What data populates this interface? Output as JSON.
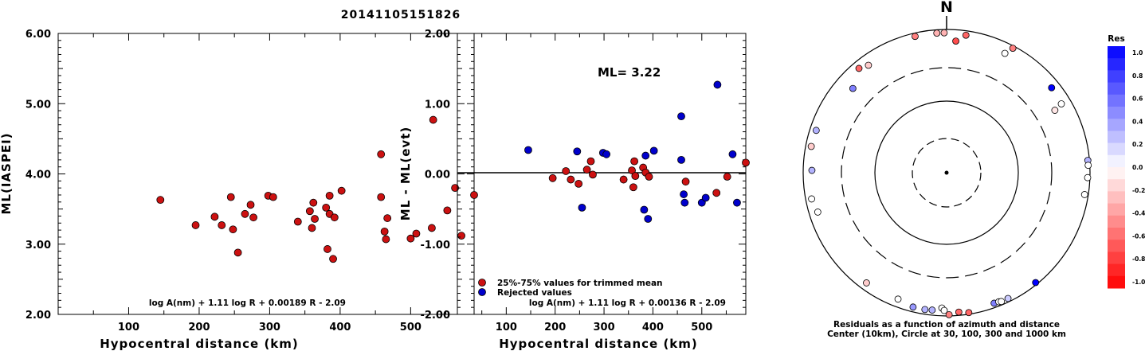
{
  "title": "20141105151826",
  "colors": {
    "red": "#cc1111",
    "blue": "#0000cc"
  },
  "chart_data": [
    {
      "type": "scatter",
      "ylabel": "ML(IASPEI)",
      "xlabel": "Hypocentral distance (km)",
      "xlim": [
        0,
        590
      ],
      "ylim": [
        2.0,
        6.0
      ],
      "xticks": [
        100,
        200,
        300,
        400,
        500
      ],
      "yticks": [
        "2.00",
        "3.00",
        "4.00",
        "5.00",
        "6.00"
      ],
      "formula": "log A(nm) + 1.11 log R + 0.00189 R - 2.09",
      "points": [
        {
          "x": 145,
          "y": 3.63
        },
        {
          "x": 195,
          "y": 3.27
        },
        {
          "x": 222,
          "y": 3.39
        },
        {
          "x": 232,
          "y": 3.27
        },
        {
          "x": 245,
          "y": 3.67
        },
        {
          "x": 248,
          "y": 3.21
        },
        {
          "x": 255,
          "y": 2.88
        },
        {
          "x": 265,
          "y": 3.43
        },
        {
          "x": 273,
          "y": 3.56
        },
        {
          "x": 277,
          "y": 3.38
        },
        {
          "x": 298,
          "y": 3.69
        },
        {
          "x": 305,
          "y": 3.67
        },
        {
          "x": 340,
          "y": 3.32
        },
        {
          "x": 357,
          "y": 3.47
        },
        {
          "x": 360,
          "y": 3.23
        },
        {
          "x": 362,
          "y": 3.59
        },
        {
          "x": 364,
          "y": 3.36
        },
        {
          "x": 380,
          "y": 3.52
        },
        {
          "x": 382,
          "y": 2.93
        },
        {
          "x": 385,
          "y": 3.43
        },
        {
          "x": 385,
          "y": 3.69
        },
        {
          "x": 390,
          "y": 2.79
        },
        {
          "x": 392,
          "y": 3.38
        },
        {
          "x": 402,
          "y": 3.76
        },
        {
          "x": 458,
          "y": 4.28
        },
        {
          "x": 458,
          "y": 3.67
        },
        {
          "x": 463,
          "y": 3.18
        },
        {
          "x": 465,
          "y": 3.07
        },
        {
          "x": 467,
          "y": 3.37
        },
        {
          "x": 500,
          "y": 3.08
        },
        {
          "x": 508,
          "y": 3.15
        },
        {
          "x": 530,
          "y": 3.23
        },
        {
          "x": 532,
          "y": 4.77
        },
        {
          "x": 552,
          "y": 3.48
        },
        {
          "x": 563,
          "y": 3.8
        },
        {
          "x": 572,
          "y": 3.12
        },
        {
          "x": 590,
          "y": 3.7
        }
      ]
    },
    {
      "type": "scatter",
      "ylabel": "ML - ML(evt)",
      "xlabel": "Hypocentral distance (km)",
      "xlim": [
        0,
        590
      ],
      "ylim": [
        -2.0,
        2.0
      ],
      "xticks": [
        100,
        200,
        300,
        400,
        500
      ],
      "yticks": [
        "-2.00",
        "-1.00",
        "0.00",
        "1.00",
        "2.00"
      ],
      "annotation": "ML= 3.22",
      "formula": "log A(nm) + 1.11 log R + 0.00136 R - 2.09",
      "legend": [
        {
          "label": "25%-75% values for trimmed mean",
          "color": "#cc1111"
        },
        {
          "label": "Rejected values",
          "color": "#0000cc"
        }
      ],
      "series": [
        {
          "name": "25%-75% values for trimmed mean",
          "points": [
            {
              "x": 195,
              "y": -0.06
            },
            {
              "x": 222,
              "y": 0.04
            },
            {
              "x": 232,
              "y": -0.08
            },
            {
              "x": 248,
              "y": -0.14
            },
            {
              "x": 265,
              "y": 0.06
            },
            {
              "x": 273,
              "y": 0.18
            },
            {
              "x": 277,
              "y": -0.01
            },
            {
              "x": 340,
              "y": -0.08
            },
            {
              "x": 357,
              "y": 0.05
            },
            {
              "x": 360,
              "y": -0.19
            },
            {
              "x": 362,
              "y": 0.18
            },
            {
              "x": 364,
              "y": -0.03
            },
            {
              "x": 380,
              "y": 0.09
            },
            {
              "x": 385,
              "y": 0.02
            },
            {
              "x": 392,
              "y": -0.04
            },
            {
              "x": 467,
              "y": -0.11
            },
            {
              "x": 530,
              "y": -0.27
            },
            {
              "x": 552,
              "y": -0.04
            },
            {
              "x": 590,
              "y": 0.16
            }
          ]
        },
        {
          "name": "Rejected values",
          "points": [
            {
              "x": 145,
              "y": 0.34
            },
            {
              "x": 245,
              "y": 0.32
            },
            {
              "x": 255,
              "y": -0.48
            },
            {
              "x": 298,
              "y": 0.3
            },
            {
              "x": 305,
              "y": 0.28
            },
            {
              "x": 382,
              "y": -0.51
            },
            {
              "x": 385,
              "y": 0.26
            },
            {
              "x": 390,
              "y": -0.64
            },
            {
              "x": 402,
              "y": 0.33
            },
            {
              "x": 458,
              "y": 0.82
            },
            {
              "x": 458,
              "y": 0.2
            },
            {
              "x": 463,
              "y": -0.29
            },
            {
              "x": 465,
              "y": -0.41
            },
            {
              "x": 500,
              "y": -0.41
            },
            {
              "x": 508,
              "y": -0.34
            },
            {
              "x": 532,
              "y": 1.27
            },
            {
              "x": 563,
              "y": 0.28
            },
            {
              "x": 572,
              "y": -0.41
            }
          ]
        }
      ]
    },
    {
      "type": "scatter",
      "north_label": "N",
      "caption_line1": "Residuals as a function of azimuth and distance",
      "caption_line2": "Center (10km), Circle at 30, 100, 300 and 1000 km",
      "rings_km": [
        30,
        100,
        300,
        1000
      ],
      "colorbar_title": "Res",
      "colorbar_labels": [
        "1.0",
        "0.8",
        "0.6",
        "0.4",
        "0.2",
        "0.0",
        "-0.2",
        "-0.4",
        "-0.6",
        "-0.8",
        "-1.0"
      ],
      "residual_points": [
        {
          "az": -13,
          "dist": 900,
          "res": -0.5
        },
        {
          "az": -4,
          "dist": 900,
          "res": -0.3
        },
        {
          "az": -1,
          "dist": 900,
          "res": -0.3
        },
        {
          "az": 8,
          "dist": 870,
          "res": -0.6
        },
        {
          "az": 28,
          "dist": 930,
          "res": -0.5
        },
        {
          "az": -40,
          "dist": 800,
          "res": -0.6
        },
        {
          "az": -36,
          "dist": 720,
          "res": -0.2
        },
        {
          "az": 4,
          "dist": 700,
          "res": -0.7
        },
        {
          "az": 26,
          "dist": 720,
          "res": 0.0
        },
        {
          "az": 51,
          "dist": 770,
          "res": 1.0
        },
        {
          "az": -48,
          "dist": 580,
          "res": 0.5
        },
        {
          "az": 59,
          "dist": 740,
          "res": 0.0
        },
        {
          "az": 60,
          "dist": 560,
          "res": -0.1
        },
        {
          "az": -72,
          "dist": 820,
          "res": 0.3
        },
        {
          "az": -79,
          "dist": 840,
          "res": -0.2
        },
        {
          "az": -89,
          "dist": 760,
          "res": 0.3
        },
        {
          "az": -101,
          "dist": 830,
          "res": 0.0
        },
        {
          "az": -107,
          "dist": 760,
          "res": 0.0
        },
        {
          "az": 85,
          "dist": 950,
          "res": 0.3
        },
        {
          "az": 87,
          "dist": 950,
          "res": 0.0
        },
        {
          "az": 92,
          "dist": 930,
          "res": 0.0
        },
        {
          "az": 99,
          "dist": 890,
          "res": 0.0
        },
        {
          "az": -144,
          "dist": 800,
          "res": -0.2
        },
        {
          "az": -159,
          "dist": 780,
          "res": 0.0
        },
        {
          "az": -166,
          "dist": 860,
          "res": 0.4
        },
        {
          "az": -171,
          "dist": 860,
          "res": 0.3
        },
        {
          "az": -174,
          "dist": 850,
          "res": 0.3
        },
        {
          "az": -178,
          "dist": 780,
          "res": 0.0
        },
        {
          "az": -179,
          "dist": 840,
          "res": 0.0
        },
        {
          "az": 175,
          "dist": 900,
          "res": -0.6
        },
        {
          "az": 179,
          "dist": 960,
          "res": -0.5
        },
        {
          "az": 171,
          "dist": 950,
          "res": -0.6
        },
        {
          "az": 160,
          "dist": 870,
          "res": 0.5
        },
        {
          "az": 158,
          "dist": 880,
          "res": 0.0
        },
        {
          "az": 141,
          "dist": 940,
          "res": 1.0
        },
        {
          "az": 157,
          "dist": 900,
          "res": 0.0
        },
        {
          "az": 154,
          "dist": 900,
          "res": 0.2
        }
      ]
    }
  ]
}
